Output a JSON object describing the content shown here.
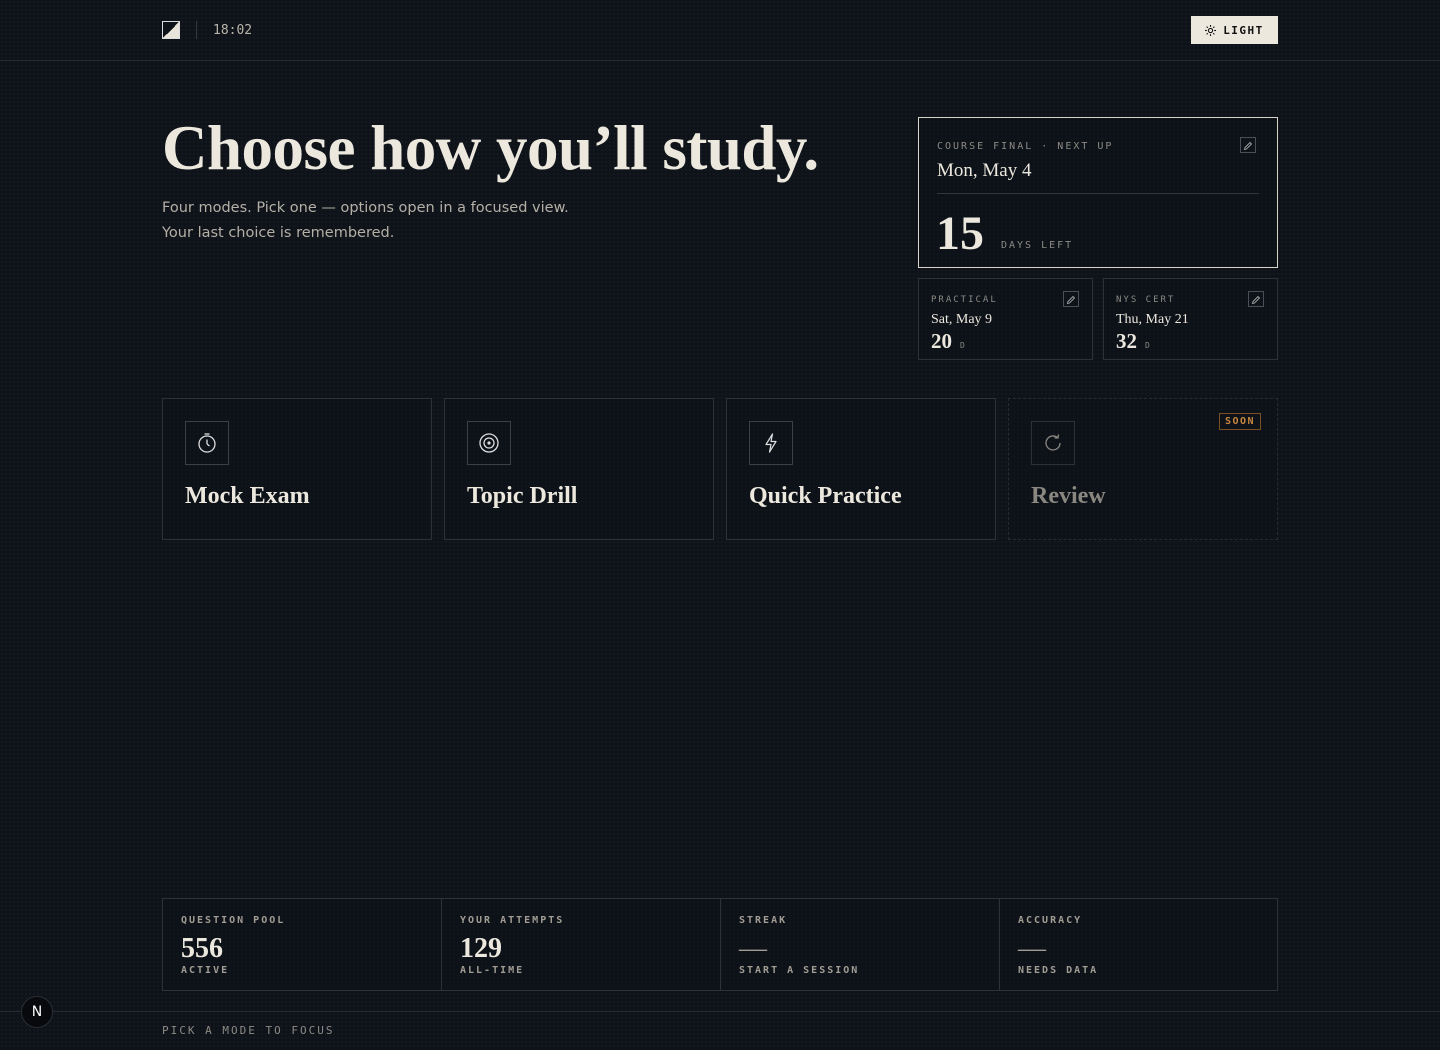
{
  "header": {
    "time": "18:02",
    "theme_button": "LIGHT"
  },
  "hero": {
    "title": "Choose how you’ll study.",
    "subtitle": "Four modes. Pick one — options open in a focused view. Your last choice is remembered."
  },
  "exams": {
    "primary": {
      "label": "COURSE FINAL · NEXT UP",
      "date": "Mon, May 4",
      "days": "15",
      "unit": "DAYS LEFT"
    },
    "others": [
      {
        "label": "PRACTICAL",
        "date": "Sat, May 9",
        "days": "20",
        "unit": "D"
      },
      {
        "label": "NYS CERT",
        "date": "Thu, May 21",
        "days": "32",
        "unit": "D"
      }
    ]
  },
  "modes": [
    {
      "name": "Mock Exam"
    },
    {
      "name": "Topic Drill"
    },
    {
      "name": "Quick Practice"
    },
    {
      "name": "Review",
      "badge": "SOON"
    }
  ],
  "stats": [
    {
      "label": "QUESTION POOL",
      "value": "556",
      "caption": "ACTIVE"
    },
    {
      "label": "YOUR ATTEMPTS",
      "value": "129",
      "caption": "ALL-TIME"
    },
    {
      "label": "STREAK",
      "value": "—",
      "caption": "START A SESSION"
    },
    {
      "label": "ACCURACY",
      "value": "—",
      "caption": "NEEDS DATA"
    }
  ],
  "footer": {
    "hint": "PICK A MODE TO FOCUS",
    "dev_badge": "N"
  }
}
